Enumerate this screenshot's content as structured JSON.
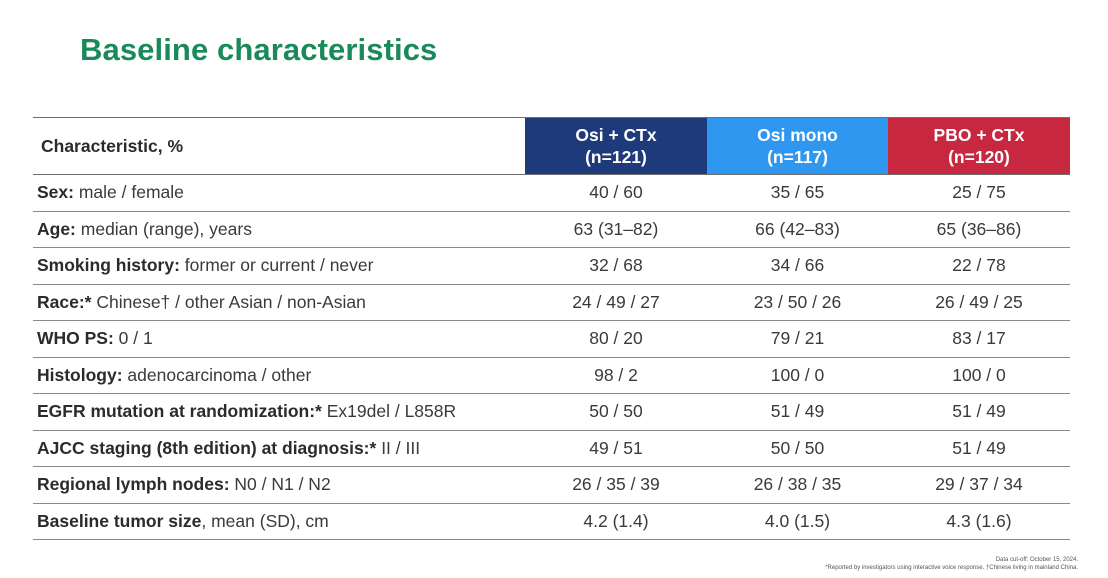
{
  "title": "Baseline characteristics",
  "colors": {
    "title": "#1b8a5a",
    "osi_ctx": "#1f3a7a",
    "osi_mono": "#2f97f0",
    "pbo_ctx": "#c8283f"
  },
  "table": {
    "characteristic_header": "Characteristic, %",
    "arms": [
      {
        "name": "Osi + CTx",
        "n": "(n=121)",
        "color": "#1f3a7a"
      },
      {
        "name": "Osi mono",
        "n": "(n=117)",
        "color": "#2f97f0"
      },
      {
        "name": "PBO + CTx",
        "n": "(n=120)",
        "color": "#c8283f"
      }
    ],
    "rows": [
      {
        "label_bold": "Sex:",
        "label_rest": " male / female",
        "values": [
          "40 / 60",
          "35 / 65",
          "25 / 75"
        ]
      },
      {
        "label_bold": "Age:",
        "label_rest": " median (range), years",
        "values": [
          "63 (31–82)",
          "66 (42–83)",
          "65 (36–86)"
        ]
      },
      {
        "label_bold": "Smoking history:",
        "label_rest": " former or current / never",
        "values": [
          "32 / 68",
          "34 / 66",
          "22 / 78"
        ]
      },
      {
        "label_bold": "Race:*",
        "label_rest": " Chinese† / other Asian / non-Asian",
        "values": [
          "24 / 49 / 27",
          "23 / 50 / 26",
          "26 / 49 / 25"
        ]
      },
      {
        "label_bold": "WHO PS:",
        "label_rest": " 0 / 1",
        "values": [
          "80 / 20",
          "79 / 21",
          "83 / 17"
        ]
      },
      {
        "label_bold": "Histology:",
        "label_rest": " adenocarcinoma / other",
        "values": [
          "98 / 2",
          "100 / 0",
          "100 / 0"
        ]
      },
      {
        "label_bold": "EGFR mutation at randomization:*",
        "label_rest": " Ex19del / L858R",
        "values": [
          "50 / 50",
          "51 / 49",
          "51 / 49"
        ]
      },
      {
        "label_bold": "AJCC staging (8th edition) at diagnosis:*",
        "label_rest": " II / III",
        "values": [
          "49 / 51",
          "50 / 50",
          "51 / 49"
        ]
      },
      {
        "label_bold": "Regional lymph nodes:",
        "label_rest": " N0 / N1 / N2",
        "values": [
          "26 / 35 / 39",
          "26 / 38 / 35",
          "29 / 37 / 34"
        ]
      },
      {
        "label_bold": "Baseline tumor size",
        "label_rest": ", mean (SD), cm",
        "values": [
          "4.2 (1.4)",
          "4.0 (1.5)",
          "4.3 (1.6)"
        ]
      }
    ]
  },
  "footnotes": {
    "cutoff": "Data cut-off: October 15, 2024.",
    "note": "*Reported by investigators using interactive voice response. †Chinese living in mainland China."
  }
}
